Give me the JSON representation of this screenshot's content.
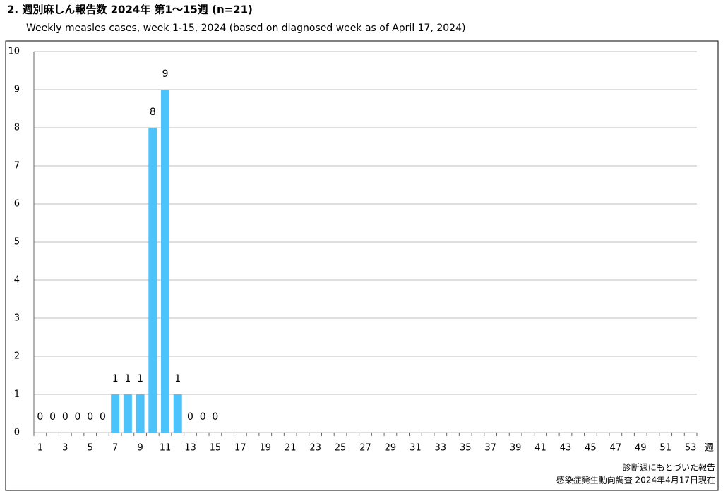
{
  "chart_data": {
    "type": "bar",
    "title": "2. 週別麻しん報告数  2024年 第1～15週 (n=21)",
    "subtitle": "Weekly measles cases, week 1-15, 2024 (based on diagnosed week as of April 17, 2024)",
    "x_unit": "週",
    "notes": [
      "診断週にもとづいた報告",
      "感染症発生動向調査 2024年4月17日現在"
    ],
    "categories": [
      1,
      null,
      3,
      null,
      5,
      null,
      7,
      null,
      9,
      null,
      11,
      null,
      13,
      null,
      15,
      null,
      17,
      null,
      19,
      null,
      21,
      null,
      23,
      null,
      25,
      null,
      27,
      null,
      29,
      null,
      31,
      null,
      33,
      null,
      35,
      null,
      37,
      null,
      39,
      null,
      41,
      null,
      43,
      null,
      45,
      null,
      47,
      null,
      49,
      null,
      51,
      null,
      53
    ],
    "values": [
      0,
      0,
      0,
      0,
      0,
      0,
      1,
      1,
      1,
      8,
      9,
      1,
      0,
      0,
      0,
      null,
      null,
      null,
      null,
      null,
      null,
      null,
      null,
      null,
      null,
      null,
      null,
      null,
      null,
      null,
      null,
      null,
      null,
      null,
      null,
      null,
      null,
      null,
      null,
      null,
      null,
      null,
      null,
      null,
      null,
      null,
      null,
      null,
      null,
      null,
      null,
      null,
      null
    ],
    "color": "#4cc3fb",
    "ylim": [
      0,
      10
    ],
    "yticks": [
      0,
      1,
      2,
      3,
      4,
      5,
      6,
      7,
      8,
      9,
      10
    ],
    "grid": true
  }
}
